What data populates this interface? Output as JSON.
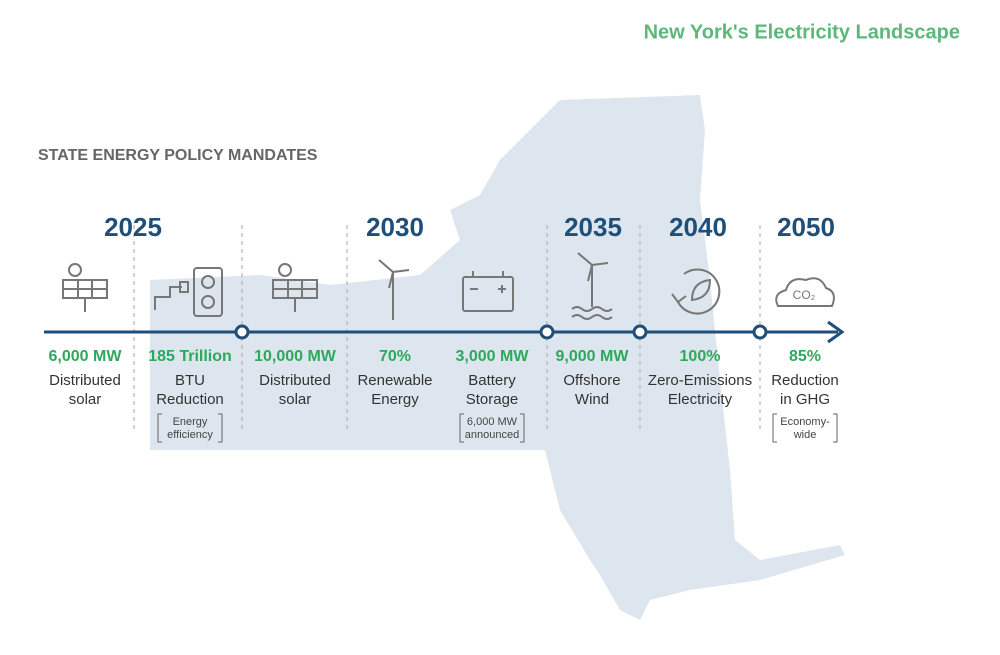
{
  "header": {
    "title": "New York's Electricity Landscape"
  },
  "section_title": "STATE ENERGY POLICY MANDATES",
  "years": [
    "2025",
    "2030",
    "2035",
    "2040",
    "2050"
  ],
  "icon_text": "CO₂",
  "items": [
    {
      "value": "6,000 MW",
      "label": [
        "Distributed",
        "solar"
      ]
    },
    {
      "value": "185 Trillion",
      "label": [
        "BTU",
        "Reduction"
      ],
      "note": [
        "Energy",
        "efficiency"
      ]
    },
    {
      "value": "10,000 MW",
      "label": [
        "Distributed",
        "solar"
      ]
    },
    {
      "value": "70%",
      "label": [
        "Renewable",
        "Energy"
      ]
    },
    {
      "value": "3,000 MW",
      "label": [
        "Battery",
        "Storage"
      ],
      "note": [
        "6,000 MW",
        "announced"
      ]
    },
    {
      "value": "9,000 MW",
      "label": [
        "Offshore",
        "Wind"
      ]
    },
    {
      "value": "100%",
      "label": [
        "Zero-Emissions",
        "Electricity"
      ]
    },
    {
      "value": "85%",
      "label": [
        "Reduction",
        "in GHG"
      ],
      "note": [
        "Economy-",
        "wide"
      ]
    }
  ]
}
